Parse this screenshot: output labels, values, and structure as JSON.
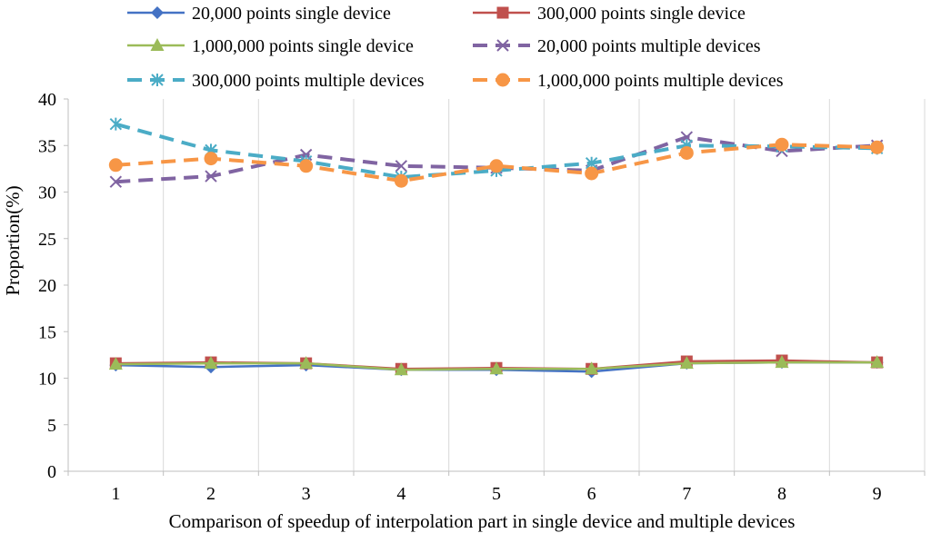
{
  "chart_data": {
    "type": "line",
    "title": "",
    "xlabel": "Comparison of speedup of interpolation part in single device and multiple devices",
    "ylabel": "Proportion(%)",
    "x": [
      1,
      2,
      3,
      4,
      5,
      6,
      7,
      8,
      9
    ],
    "x_tick_labels": [
      "1",
      "2",
      "3",
      "4",
      "5",
      "6",
      "7",
      "8",
      "9"
    ],
    "ylim": [
      0,
      40
    ],
    "y_ticks": [
      0,
      5,
      10,
      15,
      20,
      25,
      30,
      35,
      40
    ],
    "y_tick_labels": [
      "0",
      "5",
      "10",
      "15",
      "20",
      "25",
      "30",
      "35",
      "40"
    ],
    "grid": "vertical",
    "legend_position": "top",
    "series": [
      {
        "name": "20,000 points single device",
        "color": "#4472C4",
        "marker": "diamond",
        "dash": "solid",
        "values": [
          11.4,
          11.2,
          11.4,
          10.9,
          10.9,
          10.7,
          11.6,
          11.7,
          11.7
        ]
      },
      {
        "name": "300,000 points single device",
        "color": "#C0504D",
        "marker": "square",
        "dash": "solid",
        "values": [
          11.6,
          11.7,
          11.6,
          11.0,
          11.1,
          11.0,
          11.8,
          11.9,
          11.7
        ]
      },
      {
        "name": "1,000,000 points single device",
        "color": "#9BBB59",
        "marker": "triangle",
        "dash": "solid",
        "values": [
          11.5,
          11.6,
          11.6,
          10.9,
          11.0,
          11.0,
          11.6,
          11.7,
          11.7
        ]
      },
      {
        "name": "20,000 points multiple devices",
        "color": "#8064A2",
        "marker": "x",
        "dash": "dashed",
        "values": [
          31.1,
          31.7,
          34.0,
          32.8,
          32.6,
          32.3,
          35.9,
          34.4,
          35.0
        ]
      },
      {
        "name": "300,000 points multiple devices",
        "color": "#4BACC6",
        "marker": "star",
        "dash": "dashed",
        "values": [
          37.3,
          34.5,
          33.3,
          31.6,
          32.3,
          33.1,
          35.0,
          34.9,
          34.7
        ]
      },
      {
        "name": "1,000,000 points multiple devices",
        "color": "#F79646",
        "marker": "circle",
        "dash": "dashed",
        "values": [
          32.9,
          33.6,
          32.8,
          31.2,
          32.8,
          32.0,
          34.2,
          35.1,
          34.8
        ]
      }
    ]
  }
}
